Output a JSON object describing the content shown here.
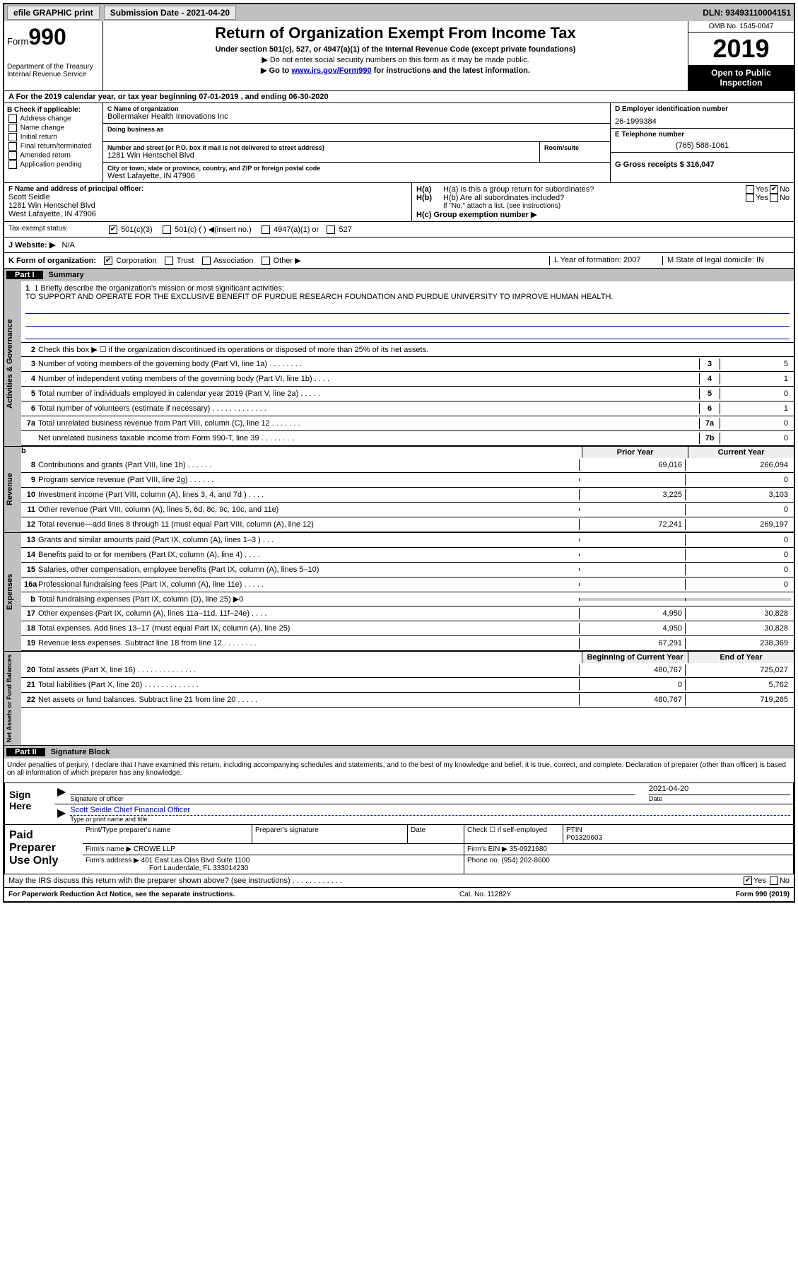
{
  "topbar": {
    "efile": "efile GRAPHIC print",
    "submission_label": "Submission Date - 2021-04-20",
    "dln": "DLN: 93493110004151"
  },
  "header": {
    "form_label": "Form",
    "form_number": "990",
    "title": "Return of Organization Exempt From Income Tax",
    "subtitle": "Under section 501(c), 527, or 4947(a)(1) of the Internal Revenue Code (except private foundations)",
    "note1": "▶ Do not enter social security numbers on this form as it may be made public.",
    "note2": "▶ Go to ",
    "note2_link": "www.irs.gov/Form990",
    "note2_suffix": " for instructions and the latest information.",
    "omb": "OMB No. 1545-0047",
    "year": "2019",
    "open": "Open to Public Inspection",
    "dept": "Department of the Treasury",
    "irs": "Internal Revenue Service"
  },
  "period": {
    "text": "A For the 2019 calendar year, or tax year beginning 07-01-2019   , and ending 06-30-2020"
  },
  "section_b": {
    "label": "B Check if applicable:",
    "items": [
      "Address change",
      "Name change",
      "Initial return",
      "Final return/terminated",
      "Amended return",
      "Application pending"
    ]
  },
  "section_c": {
    "name_label": "C Name of organization",
    "name": "Boilermaker Health Innovations Inc",
    "dba_label": "Doing business as",
    "dba": "",
    "addr_label": "Number and street (or P.O. box if mail is not delivered to street address)",
    "room_label": "Room/suite",
    "addr": "1281 Win Hentschel Blvd",
    "city_label": "City or town, state or province, country, and ZIP or foreign postal code",
    "city": "West Lafayette, IN  47906",
    "officer_label": "F Name and address of principal officer:",
    "officer_name": "Scott Seidle",
    "officer_addr1": "1281 Win Hentschel Blvd",
    "officer_addr2": "West Lafayette, IN  47906"
  },
  "section_d": {
    "ein_label": "D Employer identification number",
    "ein": "26-1999384",
    "phone_label": "E Telephone number",
    "phone": "(765) 588-1061",
    "gross_label": "G Gross receipts $ 316,047"
  },
  "section_h": {
    "ha_label": "H(a)  Is this a group return for subordinates?",
    "hb_label": "H(b)  Are all subordinates included?",
    "hb_note": "If \"No,\" attach a list. (see instructions)",
    "hc_label": "H(c)  Group exemption number ▶"
  },
  "tax_status": {
    "label": "Tax-exempt status:",
    "opts": [
      "501(c)(3)",
      "501(c) (  ) ◀(insert no.)",
      "4947(a)(1) or",
      "527"
    ]
  },
  "website": {
    "label": "J   Website: ▶",
    "value": "N/A"
  },
  "section_k": {
    "label": "K Form of organization:",
    "opts": [
      "Corporation",
      "Trust",
      "Association",
      "Other ▶"
    ],
    "year_label": "L Year of formation: 2007",
    "state_label": "M State of legal domicile: IN"
  },
  "part1": {
    "header": "Part I",
    "title": "Summary",
    "line1_label": "1  Briefly describe the organization's mission or most significant activities:",
    "mission": "TO SUPPORT AND OPERATE FOR THE EXCLUSIVE BENEFIT OF PURDUE RESEARCH FOUNDATION AND PURDUE UNIVERSITY TO IMPROVE HUMAN HEALTH.",
    "line2": "Check this box ▶ ☐  if the organization discontinued its operations or disposed of more than 25% of its net assets.",
    "sidebar1": "Activities & Governance",
    "sidebar2": "Revenue",
    "sidebar3": "Expenses",
    "sidebar4": "Net Assets or Fund Balances",
    "prior_year": "Prior Year",
    "current_year": "Current Year",
    "beg_year": "Beginning of Current Year",
    "end_year": "End of Year"
  },
  "lines_gov": [
    {
      "n": "3",
      "t": "Number of voting members of the governing body (Part VI, line 1a)  .   .   .   .   .   .   .   .",
      "nb": "3",
      "v": "5"
    },
    {
      "n": "4",
      "t": "Number of independent voting members of the governing body (Part VI, line 1b)  .   .   .   .",
      "nb": "4",
      "v": "1"
    },
    {
      "n": "5",
      "t": "Total number of individuals employed in calendar year 2019 (Part V, line 2a)  .   .   .   .   .",
      "nb": "5",
      "v": "0"
    },
    {
      "n": "6",
      "t": "Total number of volunteers (estimate if necessary)   .   .   .   .   .   .   .   .   .   .   .   .   .",
      "nb": "6",
      "v": "1"
    },
    {
      "n": "7a",
      "t": "Total unrelated business revenue from Part VIII, column (C), line 12   .   .   .   .   .   .   .",
      "nb": "7a",
      "v": "0"
    },
    {
      "n": "",
      "t": "Net unrelated business taxable income from Form 990-T, line 39   .   .   .   .   .   .   .   .",
      "nb": "7b",
      "v": "0"
    }
  ],
  "lines_rev": [
    {
      "n": "8",
      "t": "Contributions and grants (Part VIII, line 1h)   .   .   .   .   .   .",
      "v1": "69,016",
      "v2": "266,094"
    },
    {
      "n": "9",
      "t": "Program service revenue (Part VIII, line 2g)   .   .   .   .   .   .",
      "v1": "",
      "v2": "0"
    },
    {
      "n": "10",
      "t": "Investment income (Part VIII, column (A), lines 3, 4, and 7d )   .   .   .   .",
      "v1": "3,225",
      "v2": "3,103"
    },
    {
      "n": "11",
      "t": "Other revenue (Part VIII, column (A), lines 5, 6d, 8c, 9c, 10c, and 11e)",
      "v1": "",
      "v2": "0"
    },
    {
      "n": "12",
      "t": "Total revenue—add lines 8 through 11 (must equal Part VIII, column (A), line 12)",
      "v1": "72,241",
      "v2": "269,197"
    }
  ],
  "lines_exp": [
    {
      "n": "13",
      "t": "Grants and similar amounts paid (Part IX, column (A), lines 1–3 )   .   .   .",
      "v1": "",
      "v2": "0"
    },
    {
      "n": "14",
      "t": "Benefits paid to or for members (Part IX, column (A), line 4)   .   .   .   .",
      "v1": "",
      "v2": "0"
    },
    {
      "n": "15",
      "t": "Salaries, other compensation, employee benefits (Part IX, column (A), lines 5–10)",
      "v1": "",
      "v2": "0"
    },
    {
      "n": "16a",
      "t": "Professional fundraising fees (Part IX, column (A), line 11e)   .   .   .   .   .",
      "v1": "",
      "v2": "0"
    },
    {
      "n": "b",
      "t": "Total fundraising expenses (Part IX, column (D), line 25) ▶0",
      "v1": "gray",
      "v2": "gray"
    },
    {
      "n": "17",
      "t": "Other expenses (Part IX, column (A), lines 11a–11d, 11f–24e)   .   .   .   .",
      "v1": "4,950",
      "v2": "30,828"
    },
    {
      "n": "18",
      "t": "Total expenses. Add lines 13–17 (must equal Part IX, column (A), line 25)",
      "v1": "4,950",
      "v2": "30,828"
    },
    {
      "n": "19",
      "t": "Revenue less expenses. Subtract line 18 from line 12  .   .   .   .   .   .   .   .",
      "v1": "67,291",
      "v2": "238,369"
    }
  ],
  "lines_net": [
    {
      "n": "20",
      "t": "Total assets (Part X, line 16)  .   .   .   .   .   .   .   .   .   .   .   .   .   .",
      "v1": "480,767",
      "v2": "725,027"
    },
    {
      "n": "21",
      "t": "Total liabilities (Part X, line 26)  .   .   .   .   .   .   .   .   .   .   .   .   .",
      "v1": "0",
      "v2": "5,762"
    },
    {
      "n": "22",
      "t": "Net assets or fund balances. Subtract line 21 from line 20   .   .   .   .   .",
      "v1": "480,767",
      "v2": "719,265"
    }
  ],
  "part2": {
    "header": "Part II",
    "title": "Signature Block",
    "penalty": "Under penalties of perjury, I declare that I have examined this return, including accompanying schedules and statements, and to the best of my knowledge and belief, it is true, correct, and complete. Declaration of preparer (other than officer) is based on all information of which preparer has any knowledge.",
    "sign_here": "Sign Here",
    "sig_officer": "Signature of officer",
    "date": "2021-04-20",
    "date_label": "Date",
    "officer_sig": "Scott Seidle  Chief Financial Officer",
    "type_name": "Type or print name and title",
    "paid": "Paid Preparer Use Only",
    "prep_name_label": "Print/Type preparer's name",
    "prep_sig_label": "Preparer's signature",
    "prep_date_label": "Date",
    "check_if": "Check ☐ if self-employed",
    "ptin_label": "PTIN",
    "ptin": "P01320603",
    "firm_name_label": "Firm's name   ▶",
    "firm_name": "CROWE LLP",
    "firm_ein_label": "Firm's EIN ▶",
    "firm_ein": "35-0921680",
    "firm_addr_label": "Firm's address ▶",
    "firm_addr1": "401 East Las Olas Blvd Suite 1100",
    "firm_addr2": "Fort Lauderdale, FL  333014230",
    "phone_label": "Phone no.",
    "phone": "(954) 202-8600",
    "discuss": "May the IRS discuss this return with the preparer shown above? (see instructions)   .   .   .   .   .   .   .   .   .   .   .   .",
    "yes": "Yes",
    "no": "No"
  },
  "footer": {
    "left": "For Paperwork Reduction Act Notice, see the separate instructions.",
    "mid": "Cat. No. 11282Y",
    "right": "Form 990 (2019)"
  }
}
